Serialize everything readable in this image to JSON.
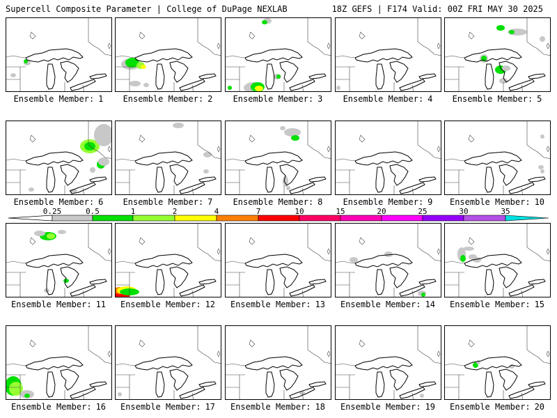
{
  "header": {
    "title": "Supercell Composite Parameter | College of DuPage NEXLAB",
    "run_info": "18Z GEFS | F174 Valid: 00Z FRI MAY 30 2025"
  },
  "legend": {
    "ticks": [
      "0.25",
      "0.5",
      "1",
      "2",
      "4",
      "7",
      "10",
      "15",
      "20",
      "25",
      "30",
      "35"
    ],
    "colors": [
      "#c8c8c8",
      "#00e000",
      "#96ff32",
      "#ffff00",
      "#ff8000",
      "#ff0000",
      "#ff0064",
      "#ff00b4",
      "#ff00ff",
      "#9600ff",
      "#b450e6",
      "#00e0e0"
    ]
  },
  "member_label": "Ensemble Member:",
  "members": [
    {
      "number": "1"
    },
    {
      "number": "2"
    },
    {
      "number": "3"
    },
    {
      "number": "4"
    },
    {
      "number": "5"
    },
    {
      "number": "6"
    },
    {
      "number": "7"
    },
    {
      "number": "8"
    },
    {
      "number": "9"
    },
    {
      "number": "10"
    },
    {
      "number": "11"
    },
    {
      "number": "12"
    },
    {
      "number": "13"
    },
    {
      "number": "14"
    },
    {
      "number": "15"
    },
    {
      "number": "16"
    },
    {
      "number": "17"
    },
    {
      "number": "18"
    },
    {
      "number": "19"
    },
    {
      "number": "20"
    }
  ]
}
